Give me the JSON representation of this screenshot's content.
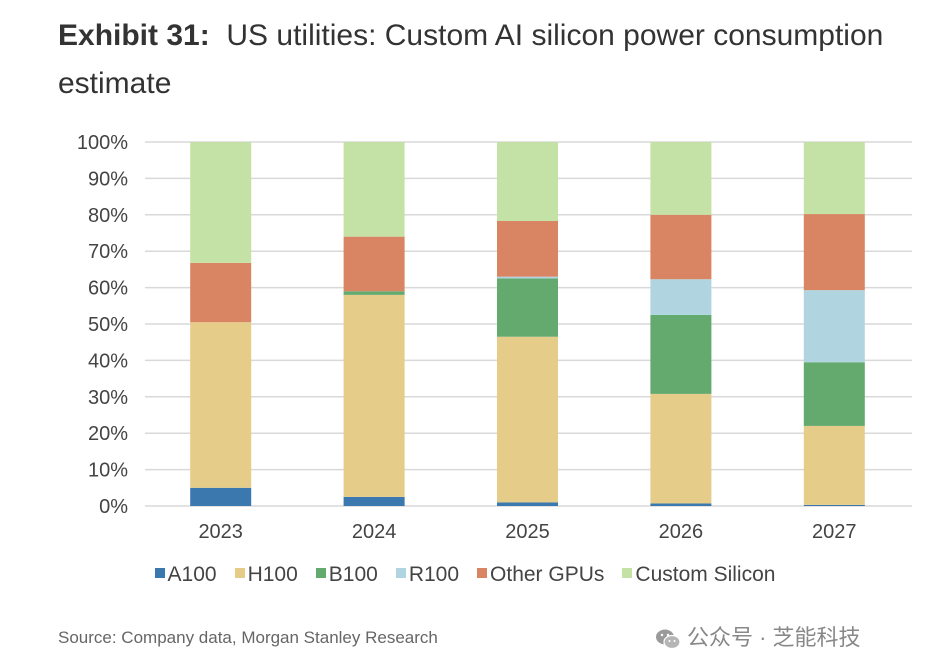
{
  "header": {
    "exhibit": "Exhibit 31:",
    "title": "US utilities: Custom AI silicon power consumption estimate"
  },
  "chart_data": {
    "type": "bar",
    "stacked": true,
    "normalized": true,
    "title": "US utilities: Custom AI silicon power consumption estimate",
    "xlabel": "",
    "ylabel": "",
    "ylim": [
      0,
      100
    ],
    "yticks": [
      "0%",
      "10%",
      "20%",
      "30%",
      "40%",
      "50%",
      "60%",
      "70%",
      "80%",
      "90%",
      "100%"
    ],
    "grid": true,
    "legend_position": "bottom",
    "categories": [
      "2023",
      "2024",
      "2025",
      "2026",
      "2027"
    ],
    "series": [
      {
        "name": "A100",
        "color": "#3a78ad",
        "values": [
          5.0,
          2.5,
          1.0,
          0.7,
          0.3
        ]
      },
      {
        "name": "H100",
        "color": "#e5cc88",
        "values": [
          45.5,
          55.5,
          45.5,
          30.1,
          21.7
        ]
      },
      {
        "name": "B100",
        "color": "#64aa6e",
        "values": [
          0,
          1.0,
          16.0,
          21.7,
          17.5
        ]
      },
      {
        "name": "R100",
        "color": "#b0d5e0",
        "values": [
          0,
          0,
          0.5,
          9.8,
          19.8
        ]
      },
      {
        "name": "Other GPUs",
        "color": "#d98462",
        "values": [
          16.3,
          15.0,
          15.3,
          17.7,
          20.9
        ]
      },
      {
        "name": "Custom Silicon",
        "color": "#c4e2a6",
        "values": [
          33.2,
          26.0,
          21.7,
          20.0,
          19.8
        ]
      }
    ]
  },
  "footer": {
    "source": "Source: Company data, Morgan Stanley Research",
    "watermark": "公众号 · 芝能科技"
  }
}
